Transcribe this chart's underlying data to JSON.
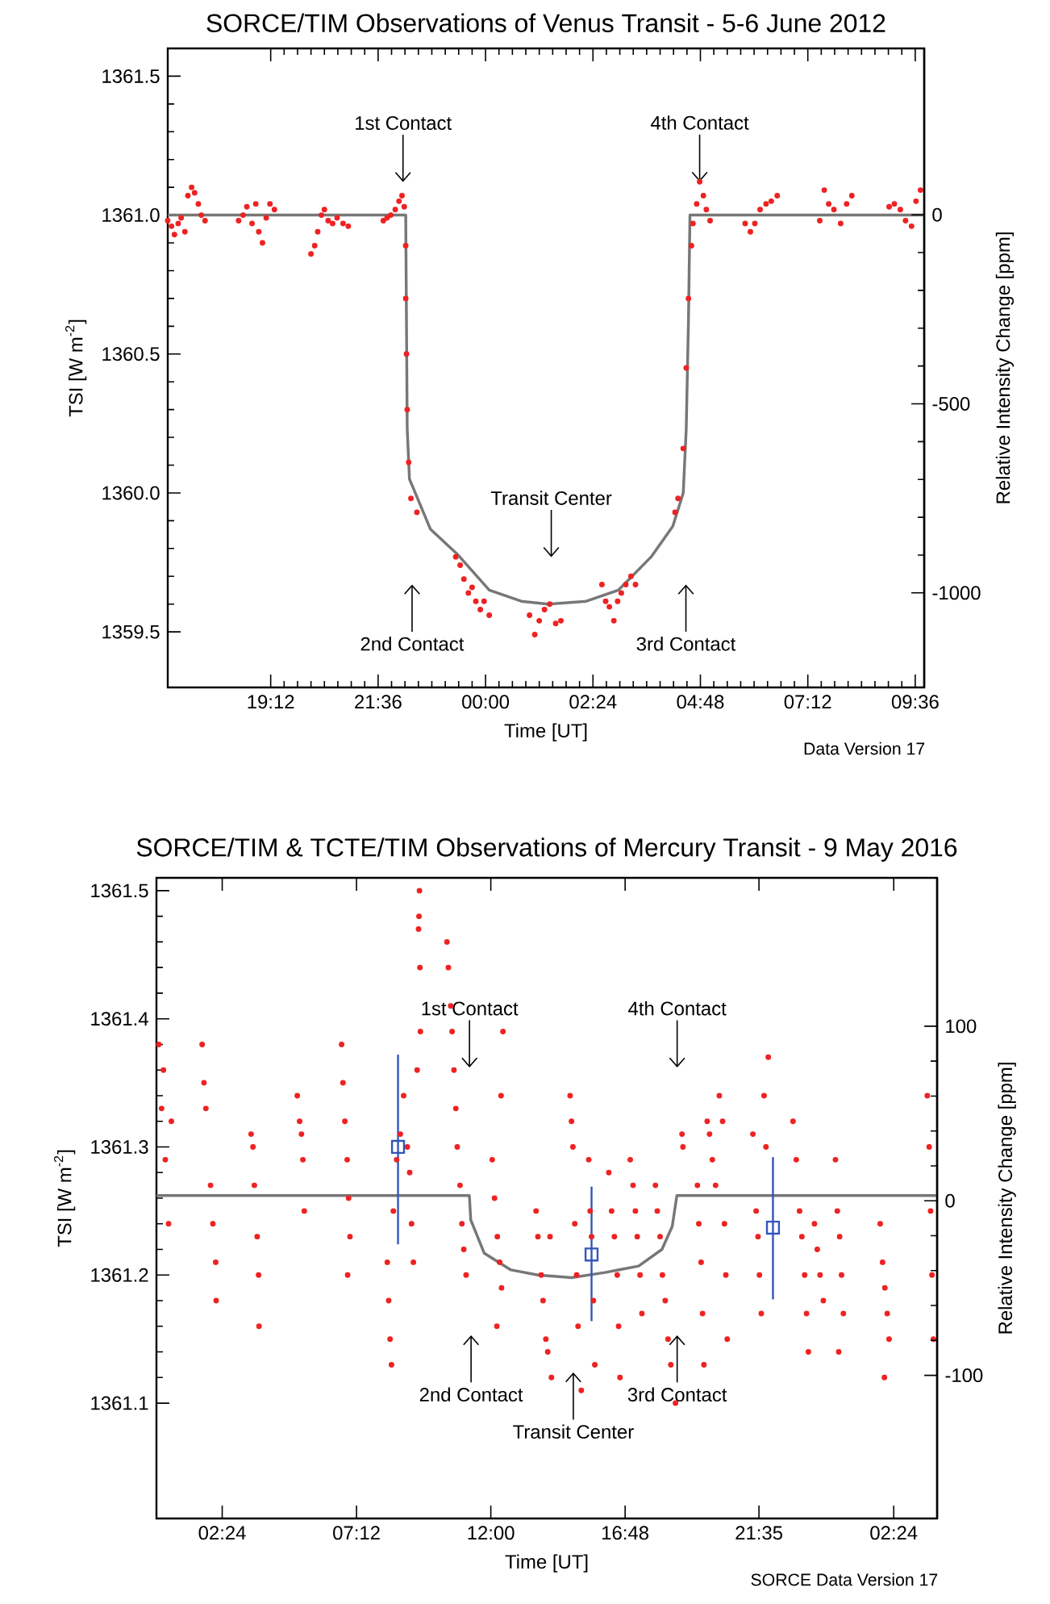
{
  "chart_data": [
    {
      "type": "scatter",
      "title": "SORCE/TIM Observations of Venus Transit - 5-6 June 2012",
      "xlabel": "Time [UT]",
      "ylabel": "TSI [W m$^{-2}$]",
      "y2label": "Relative Intensity Change [ppm]",
      "xlim": [
        "2012-06-05T16:54",
        "2012-06-06T09:48"
      ],
      "ylim": [
        1359.3,
        1361.6
      ],
      "y2lim": [
        -1250,
        440
      ],
      "xticks": [
        {
          "value": "2012-06-05T19:12",
          "label": "19:12"
        },
        {
          "value": "2012-06-05T21:36",
          "label": "21:36"
        },
        {
          "value": "2012-06-06T00:00",
          "label": "00:00"
        },
        {
          "value": "2012-06-06T02:24",
          "label": "02:24"
        },
        {
          "value": "2012-06-06T04:48",
          "label": "04:48"
        },
        {
          "value": "2012-06-06T07:12",
          "label": "07:12"
        },
        {
          "value": "2012-06-06T09:36",
          "label": "09:36"
        }
      ],
      "yticks": [
        1359.5,
        {
          "value": 1360,
          "label": "1360.0"
        },
        1360.5,
        {
          "value": 1361,
          "label": "1361.0"
        },
        1361.5
      ],
      "y2ticks": [
        -1000,
        -500,
        0
      ],
      "series": [
        {
          "color": "#ee2222",
          "marker": "circle",
          "x": [
            "2012-06-05T16:54",
            "2012-06-05T16:59",
            "2012-06-05T17:03",
            "2012-06-05T17:08",
            "2012-06-05T17:12",
            "2012-06-05T17:17",
            "2012-06-05T17:21",
            "2012-06-05T17:26",
            "2012-06-05T17:30",
            "2012-06-05T17:35",
            "2012-06-05T17:39",
            "2012-06-05T17:44",
            "2012-06-05T18:29",
            "2012-06-05T18:35",
            "2012-06-05T18:40",
            "2012-06-05T18:47",
            "2012-06-05T18:52",
            "2012-06-05T18:56",
            "2012-06-05T19:01",
            "2012-06-05T19:06",
            "2012-06-05T19:11",
            "2012-06-05T19:17",
            "2012-06-05T20:06",
            "2012-06-05T20:11",
            "2012-06-05T20:15",
            "2012-06-05T20:20",
            "2012-06-05T20:24",
            "2012-06-05T20:29",
            "2012-06-05T20:35",
            "2012-06-05T20:41",
            "2012-06-05T20:49",
            "2012-06-05T20:56",
            "2012-06-05T21:43",
            "2012-06-05T21:48",
            "2012-06-05T21:53",
            "2012-06-05T21:59",
            "2012-06-05T22:04",
            "2012-06-05T22:08",
            "2012-06-05T22:11",
            "2012-06-05T22:13",
            "2012-06-05T22:13",
            "2012-06-05T22:14",
            "2012-06-05T22:15",
            "2012-06-05T22:17",
            "2012-06-05T22:20",
            "2012-06-05T22:28",
            "2012-06-05T23:20",
            "2012-06-05T23:26",
            "2012-06-05T23:31",
            "2012-06-05T23:37",
            "2012-06-05T23:42",
            "2012-06-05T23:47",
            "2012-06-05T23:53",
            "2012-06-05T23:58",
            "2012-06-06T00:05",
            "2012-06-06T00:59",
            "2012-06-06T01:06",
            "2012-06-06T01:12",
            "2012-06-06T01:19",
            "2012-06-06T01:26",
            "2012-06-06T01:34",
            "2012-06-06T01:41",
            "2012-06-06T02:36",
            "2012-06-06T02:41",
            "2012-06-06T02:46",
            "2012-06-06T02:52",
            "2012-06-06T02:57",
            "2012-06-06T03:02",
            "2012-06-06T03:08",
            "2012-06-06T03:15",
            "2012-06-06T03:21",
            "2012-06-06T04:14",
            "2012-06-06T04:18",
            "2012-06-06T04:25",
            "2012-06-06T04:29",
            "2012-06-06T04:32",
            "2012-06-06T04:36",
            "2012-06-06T04:38",
            "2012-06-06T04:43",
            "2012-06-06T04:47",
            "2012-06-06T04:52",
            "2012-06-06T04:56",
            "2012-06-06T05:01",
            "2012-06-06T05:48",
            "2012-06-06T05:55",
            "2012-06-06T06:01",
            "2012-06-06T06:08",
            "2012-06-06T06:16",
            "2012-06-06T06:23",
            "2012-06-06T06:31",
            "2012-06-06T07:28",
            "2012-06-06T07:34",
            "2012-06-06T07:40",
            "2012-06-06T07:47",
            "2012-06-06T07:56",
            "2012-06-06T08:04",
            "2012-06-06T08:11",
            "2012-06-06T09:01",
            "2012-06-06T09:08",
            "2012-06-06T09:16",
            "2012-06-06T09:23",
            "2012-06-06T09:31",
            "2012-06-06T09:37",
            "2012-06-06T09:43"
          ],
          "values": [
            1360.98,
            1360.96,
            1360.93,
            1360.97,
            1360.99,
            1360.94,
            1361.07,
            1361.1,
            1361.08,
            1361.04,
            1361.0,
            1360.98,
            1360.98,
            1361.0,
            1361.03,
            1360.97,
            1361.04,
            1360.94,
            1360.9,
            1360.99,
            1361.04,
            1361.02,
            1360.86,
            1360.89,
            1360.94,
            1361.0,
            1361.02,
            1360.98,
            1360.97,
            1360.99,
            1360.97,
            1360.96,
            1360.98,
            1360.99,
            1361.0,
            1361.02,
            1361.05,
            1361.07,
            1361.03,
            1360.89,
            1360.7,
            1360.5,
            1360.3,
            1360.11,
            1359.98,
            1359.93,
            1359.77,
            1359.74,
            1359.69,
            1359.64,
            1359.66,
            1359.61,
            1359.58,
            1359.61,
            1359.56,
            1359.56,
            1359.49,
            1359.54,
            1359.58,
            1359.6,
            1359.53,
            1359.54,
            1359.67,
            1359.61,
            1359.59,
            1359.54,
            1359.61,
            1359.64,
            1359.67,
            1359.7,
            1359.67,
            1359.93,
            1359.98,
            1360.16,
            1360.45,
            1360.7,
            1360.89,
            1360.97,
            1361.04,
            1361.12,
            1361.07,
            1361.02,
            1360.98,
            1360.97,
            1360.94,
            1360.97,
            1361.02,
            1361.04,
            1361.05,
            1361.07,
            1360.98,
            1361.09,
            1361.04,
            1361.02,
            1360.97,
            1361.04,
            1361.07,
            1361.03,
            1361.04,
            1361.02,
            1360.98,
            1360.96,
            1361.05,
            1361.09
          ]
        },
        {
          "type": "line",
          "color": "#777777",
          "x": [
            "2012-06-05T16:54",
            "2012-06-05T22:13",
            "2012-06-05T22:14",
            "2012-06-05T22:15",
            "2012-06-05T22:18",
            "2012-06-05T22:46",
            "2012-06-05T23:22",
            "2012-06-06T00:05",
            "2012-06-06T00:48",
            "2012-06-06T01:24",
            "2012-06-06T02:15",
            "2012-06-06T02:58",
            "2012-06-06T03:42",
            "2012-06-06T04:11",
            "2012-06-06T04:25",
            "2012-06-06T04:29",
            "2012-06-06T04:32",
            "2012-06-06T04:34",
            "2012-06-06T09:48"
          ],
          "values": [
            1361.0,
            1361.0,
            1360.62,
            1360.23,
            1360.05,
            1359.87,
            1359.78,
            1359.65,
            1359.61,
            1359.6,
            1359.61,
            1359.65,
            1359.77,
            1359.88,
            1360.0,
            1360.23,
            1360.62,
            1361.0,
            1361.0
          ]
        }
      ],
      "annotations": [
        "1st Contact",
        {
          "text": "4th Contact",
          "x": "2012-06-06T04:47",
          "y": 1361.12
        },
        "Transit Center",
        "2nd Contact",
        "3rd Contact",
        "Data Version 17"
      ]
    },
    {
      "type": "scatter",
      "title": "SORCE/TIM & TCTE/TIM Observations of Mercury Transit - 9 May 2016",
      "xlabel": "Time [UT]",
      "ylabel": "TSI [W m$^{-2}$]",
      "y2label": "Relative Intensity Change [ppm]",
      "xlim": [
        "2016-05-09T00:03",
        "2016-05-10T03:57"
      ],
      "ylim": [
        1361.01,
        1361.51
      ],
      "y2lim": [
        -182,
        185
      ],
      "xticks": [
        {
          "value": "2016-05-09T02:24",
          "label": "02:24"
        },
        {
          "value": "2016-05-09T07:12",
          "label": "07:12"
        },
        {
          "value": "2016-05-09T12:00",
          "label": "12:00"
        },
        {
          "value": "2016-05-09T16:48",
          "label": "16:48"
        },
        {
          "value": "2016-05-09T21:35",
          "label": "21:35"
        },
        {
          "value": "2016-05-10T02:24",
          "label": "02:24"
        }
      ],
      "yticks": [
        1361.1,
        1361.2,
        1361.3,
        1361.4,
        1361.5
      ],
      "y2ticks": [
        -100,
        0,
        100
      ],
      "series": [
        {
          "color": "#ee2222",
          "marker": "circle",
          "x": [
            "2016-05-09T00:08",
            "2016-05-09T00:14",
            "2016-05-09T00:18",
            "2016-05-09T00:22",
            "2016-05-09T00:29",
            "2016-05-09T00:35",
            "2016-05-09T01:41",
            "2016-05-09T01:45",
            "2016-05-09T01:49",
            "2016-05-09T01:59",
            "2016-05-09T02:04",
            "2016-05-09T02:10",
            "2016-05-09T02:11",
            "2016-05-09T03:26",
            "2016-05-09T03:30",
            "2016-05-09T03:33",
            "2016-05-09T03:39",
            "2016-05-09T03:42",
            "2016-05-09T03:43",
            "2016-05-09T05:05",
            "2016-05-09T05:10",
            "2016-05-09T05:14",
            "2016-05-09T05:17",
            "2016-05-09T05:20",
            "2016-05-09T06:40",
            "2016-05-09T06:43",
            "2016-05-09T06:47",
            "2016-05-09T06:52",
            "2016-05-09T06:55",
            "2016-05-09T06:58",
            "2016-05-09T06:53",
            "2016-05-09T08:18",
            "2016-05-09T08:21",
            "2016-05-09T08:24",
            "2016-05-09T08:27",
            "2016-05-09T08:31",
            "2016-05-09T08:38",
            "2016-05-09T08:46",
            "2016-05-09T08:53",
            "2016-05-09T09:01",
            "2016-05-09T09:06",
            "2016-05-09T09:10",
            "2016-05-09T09:14",
            "2016-05-09T09:22",
            "2016-05-09T09:29",
            "2016-05-09T09:25",
            "2016-05-09T09:26",
            "2016-05-09T09:27",
            "2016-05-09T09:28",
            "2016-05-09T10:26",
            "2016-05-09T10:29",
            "2016-05-09T10:34",
            "2016-05-09T10:37",
            "2016-05-09T10:41",
            "2016-05-09T10:45",
            "2016-05-09T10:48",
            "2016-05-09T10:54",
            "2016-05-09T10:58",
            "2016-05-09T11:02",
            "2016-05-09T11:07",
            "2016-05-09T12:03",
            "2016-05-09T12:08",
            "2016-05-09T12:14",
            "2016-05-09T12:19",
            "2016-05-09T12:23",
            "2016-05-09T12:26",
            "2016-05-09T12:22",
            "2016-05-09T12:13",
            "2016-05-09T13:37",
            "2016-05-09T13:41",
            "2016-05-09T13:48",
            "2016-05-09T13:52",
            "2016-05-09T13:58",
            "2016-05-09T14:02",
            "2016-05-09T14:10",
            "2016-05-09T14:07",
            "2016-05-09T14:50",
            "2016-05-09T14:53",
            "2016-05-09T14:56",
            "2016-05-09T15:00",
            "2016-05-09T15:04",
            "2016-05-09T15:07",
            "2016-05-09T15:14",
            "2016-05-09T15:30",
            "2016-05-09T15:33",
            "2016-05-09T15:36",
            "2016-05-09T15:40",
            "2016-05-09T15:43",
            "2016-05-09T16:13",
            "2016-05-09T16:19",
            "2016-05-09T16:25",
            "2016-05-09T16:31",
            "2016-05-09T16:34",
            "2016-05-09T16:37",
            "2016-05-09T16:59",
            "2016-05-09T17:05",
            "2016-05-09T17:10",
            "2016-05-09T17:14",
            "2016-05-09T17:20",
            "2016-05-09T17:24",
            "2016-05-09T17:53",
            "2016-05-09T17:57",
            "2016-05-09T18:03",
            "2016-05-09T18:08",
            "2016-05-09T18:14",
            "2016-05-09T18:20",
            "2016-05-09T18:26",
            "2016-05-09T18:36",
            "2016-05-09T18:50",
            "2016-05-09T18:52",
            "2016-05-09T19:23",
            "2016-05-09T19:26",
            "2016-05-09T19:31",
            "2016-05-09T19:34",
            "2016-05-09T19:37",
            "2016-05-09T19:44",
            "2016-05-09T19:49",
            "2016-05-09T19:55",
            "2016-05-09T20:02",
            "2016-05-09T20:10",
            "2016-05-09T20:17",
            "2016-05-09T20:21",
            "2016-05-09T20:24",
            "2016-05-09T20:27",
            "2016-05-09T21:22",
            "2016-05-09T21:29",
            "2016-05-09T21:33",
            "2016-05-09T21:36",
            "2016-05-09T21:40",
            "2016-05-09T21:46",
            "2016-05-09T21:50",
            "2016-05-09T21:55",
            "2016-05-09T22:48",
            "2016-05-09T22:55",
            "2016-05-09T23:02",
            "2016-05-09T23:07",
            "2016-05-09T23:13",
            "2016-05-09T23:17",
            "2016-05-09T23:21",
            "2016-05-09T23:34",
            "2016-05-09T23:40",
            "2016-05-09T23:46",
            "2016-05-09T23:53",
            "2016-05-10T00:19",
            "2016-05-10T00:23",
            "2016-05-10T00:28",
            "2016-05-10T00:32",
            "2016-05-10T00:36",
            "2016-05-10T00:26",
            "2016-05-10T01:55",
            "2016-05-10T02:00",
            "2016-05-10T02:05",
            "2016-05-10T02:10",
            "2016-05-10T02:14",
            "2016-05-10T02:04",
            "2016-05-10T03:36",
            "2016-05-10T03:40",
            "2016-05-10T03:43",
            "2016-05-10T03:46",
            "2016-05-10T03:49"
          ],
          "values": [
            1361.38,
            1361.33,
            1361.36,
            1361.29,
            1361.24,
            1361.32,
            1361.38,
            1361.35,
            1361.33,
            1361.27,
            1361.24,
            1361.21,
            1361.18,
            1361.31,
            1361.3,
            1361.27,
            1361.23,
            1361.2,
            1361.16,
            1361.34,
            1361.32,
            1361.31,
            1361.29,
            1361.25,
            1361.38,
            1361.35,
            1361.32,
            1361.29,
            1361.26,
            1361.23,
            1361.2,
            1361.21,
            1361.18,
            1361.15,
            1361.13,
            1361.25,
            1361.29,
            1361.31,
            1361.34,
            1361.3,
            1361.28,
            1361.24,
            1361.21,
            1361.36,
            1361.39,
            1361.47,
            1361.48,
            1361.5,
            1361.44,
            1361.46,
            1361.44,
            1361.41,
            1361.39,
            1361.36,
            1361.33,
            1361.3,
            1361.27,
            1361.24,
            1361.22,
            1361.2,
            1361.29,
            1361.26,
            1361.23,
            1361.21,
            1361.19,
            1361.39,
            1361.34,
            1361.16,
            1361.25,
            1361.23,
            1361.2,
            1361.18,
            1361.15,
            1361.14,
            1361.12,
            1361.23,
            1361.34,
            1361.32,
            1361.3,
            1361.24,
            1361.2,
            1361.16,
            1361.11,
            1361.29,
            1361.25,
            1361.23,
            1361.18,
            1361.13,
            1361.28,
            1361.25,
            1361.23,
            1361.2,
            1361.16,
            1361.12,
            1361.29,
            1361.27,
            1361.25,
            1361.23,
            1361.2,
            1361.17,
            1361.27,
            1361.25,
            1361.23,
            1361.2,
            1361.18,
            1361.15,
            1361.13,
            1361.1,
            1361.31,
            1361.3,
            1361.27,
            1361.24,
            1361.21,
            1361.17,
            1361.13,
            1361.32,
            1361.31,
            1361.29,
            1361.27,
            1361.34,
            1361.32,
            1361.24,
            1361.2,
            1361.15,
            1361.31,
            1361.25,
            1361.23,
            1361.2,
            1361.17,
            1361.34,
            1361.3,
            1361.37,
            1361.32,
            1361.29,
            1361.25,
            1361.23,
            1361.2,
            1361.17,
            1361.14,
            1361.24,
            1361.22,
            1361.2,
            1361.18,
            1361.29,
            1361.25,
            1361.23,
            1361.2,
            1361.17,
            1361.14,
            1361.24,
            1361.21,
            1361.19,
            1361.17,
            1361.15,
            1361.12,
            1361.34,
            1361.3,
            1361.25,
            1361.2,
            1361.15
          ]
        },
        {
          "type": "line",
          "color": "#777777",
          "x": [
            "2016-05-09T00:03",
            "2016-05-09T11:14",
            "2016-05-09T11:17",
            "2016-05-09T11:46",
            "2016-05-09T12:43",
            "2016-05-09T13:41",
            "2016-05-09T14:53",
            "2016-05-09T16:05",
            "2016-05-09T17:17",
            "2016-05-09T18:07",
            "2016-05-09T18:29",
            "2016-05-09T18:39",
            "2016-05-10T03:57"
          ],
          "values": [
            1361.262,
            1361.262,
            1361.243,
            1361.217,
            1361.204,
            1361.2,
            1361.198,
            1361.202,
            1361.207,
            1361.22,
            1361.238,
            1361.262,
            1361.262
          ]
        },
        {
          "color": "#3355bb",
          "marker": "square",
          "x": [
            "2016-05-09T08:41",
            "2016-05-09T15:36",
            "2016-05-09T22:05"
          ],
          "values": [
            1361.3,
            1361.216,
            1361.237
          ],
          "errors": [
            [
              1361.224,
              1361.372
            ],
            [
              1361.164,
              1361.269
            ],
            [
              1361.181,
              1361.292
            ]
          ]
        }
      ],
      "annotations": [
        "1st Contact",
        "4th Contact",
        "2nd Contact",
        "Transit Center",
        "3rd Contact",
        "SORCE Data Version 17"
      ]
    }
  ]
}
